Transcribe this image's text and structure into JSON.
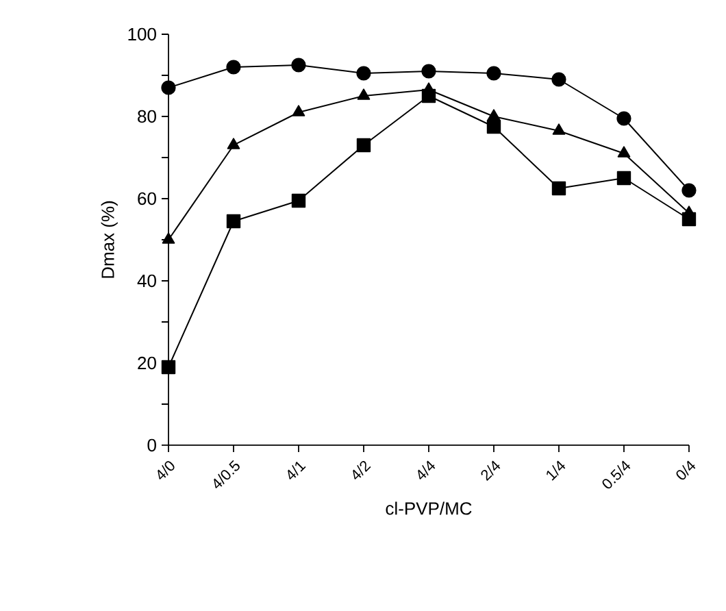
{
  "chart_data": {
    "type": "line",
    "xlabel": "cl-PVP/MC",
    "ylabel": "Dmax (%)",
    "categories": [
      "4/0",
      "4/0.5",
      "4/1",
      "4/2",
      "4/4",
      "2/4",
      "1/4",
      "0.5/4",
      "0/4"
    ],
    "series": [
      {
        "color": "#000000",
        "marker": "circle",
        "values": [
          87,
          92,
          92.5,
          90.5,
          91,
          90.5,
          89,
          79.5,
          62
        ]
      },
      {
        "color": "#000000",
        "marker": "triangle",
        "values": [
          50,
          73,
          81,
          85,
          86.5,
          80,
          76.5,
          71,
          56.5
        ]
      },
      {
        "color": "#000000",
        "marker": "square",
        "values": [
          19,
          54.5,
          59.5,
          73,
          85,
          77.5,
          62.5,
          65,
          55
        ]
      }
    ],
    "ylim": [
      0,
      100
    ],
    "yticks": [
      0,
      {
        "value": 10,
        "label": null
      },
      20,
      {
        "value": 30,
        "label": null
      },
      40,
      {
        "value": 50,
        "label": null
      },
      60,
      {
        "value": 70,
        "label": null
      },
      80,
      {
        "value": 90,
        "label": null
      },
      100
    ],
    "grid": false,
    "line_style": "solid"
  }
}
